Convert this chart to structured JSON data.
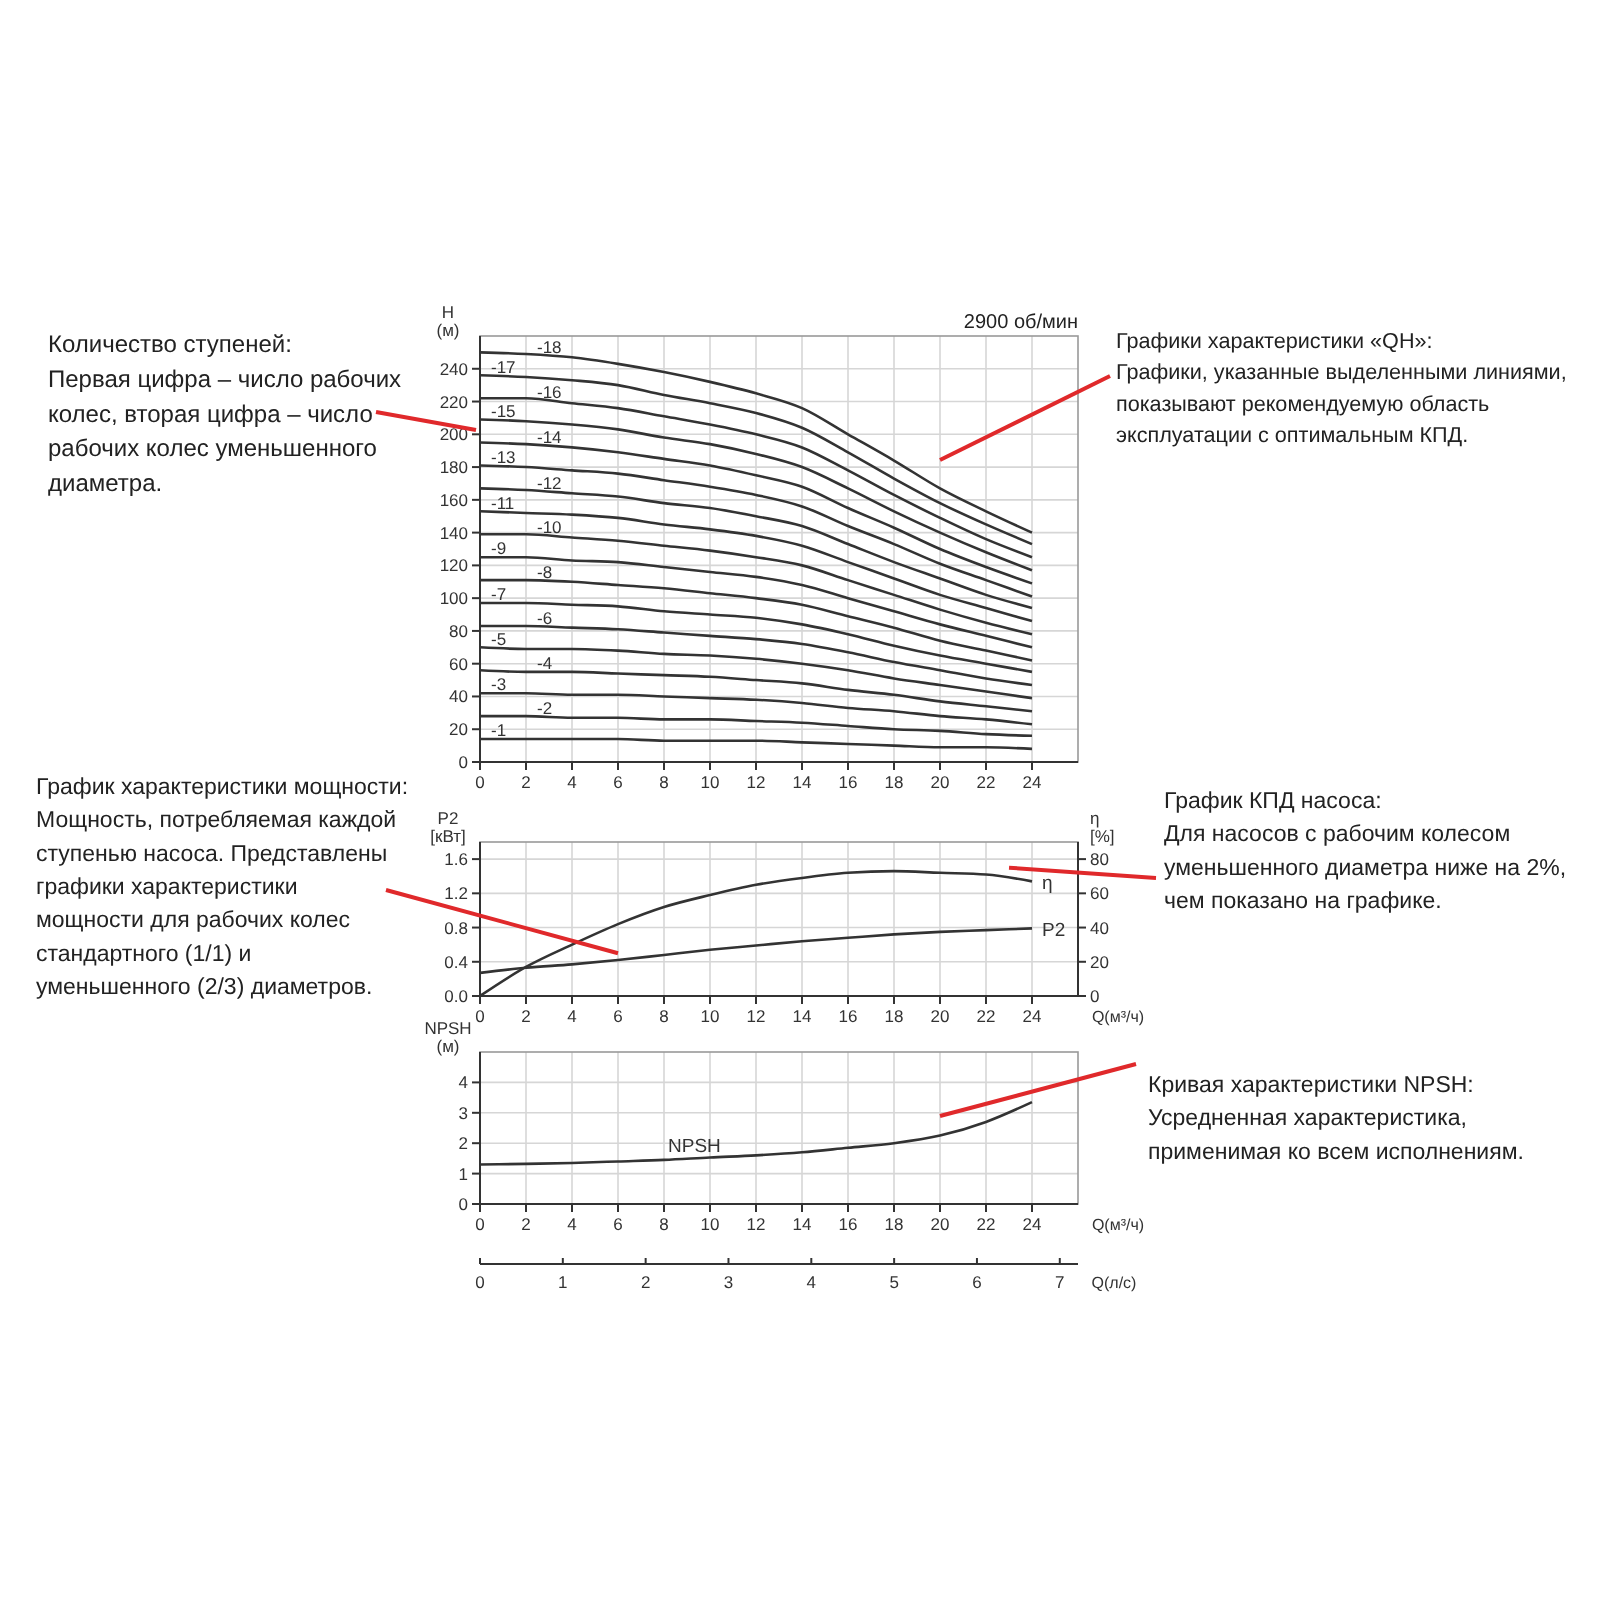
{
  "chart_data": [
    {
      "type": "line",
      "ylabel": "H (м)",
      "xlim": [
        0,
        26
      ],
      "xticks": [
        0,
        2,
        4,
        6,
        8,
        10,
        12,
        14,
        16,
        18,
        20,
        22,
        24
      ],
      "ylim": [
        0,
        260
      ],
      "yticks": [
        0,
        20,
        40,
        60,
        80,
        100,
        120,
        140,
        160,
        180,
        200,
        220,
        240
      ],
      "grid": true,
      "marker": "none",
      "line_style": "solid",
      "x": [
        0,
        2,
        4,
        6,
        8,
        10,
        12,
        14,
        16,
        18,
        20,
        22,
        24
      ],
      "annotations": [
        "2900 об/мин",
        "Количество ступеней:\nПервая цифра – число рабочих\nколес, вторая цифра – число\nрабочих колес уменьшенного\nдиаметра.",
        "Графики характеристики «QH»:\nГрафики, указанные выделенными линиями,\nпоказывают рекомендуемую область\nэксплуатации с оптимальным КПД."
      ],
      "series": [
        {
          "name": "-1",
          "color": "#333333",
          "values": [
            14,
            14,
            14,
            14,
            13,
            13,
            13,
            12,
            11,
            10,
            9,
            9,
            8
          ]
        },
        {
          "name": "-2",
          "color": "#333333",
          "values": [
            28,
            28,
            27,
            27,
            26,
            26,
            25,
            24,
            22,
            20,
            19,
            17,
            16
          ]
        },
        {
          "name": "-3",
          "color": "#333333",
          "values": [
            42,
            42,
            41,
            41,
            40,
            39,
            38,
            36,
            33,
            31,
            28,
            26,
            23
          ]
        },
        {
          "name": "-4",
          "color": "#333333",
          "values": [
            56,
            55,
            55,
            54,
            53,
            52,
            50,
            48,
            44,
            41,
            37,
            34,
            31
          ]
        },
        {
          "name": "-5",
          "color": "#333333",
          "values": [
            70,
            69,
            69,
            68,
            66,
            65,
            63,
            60,
            56,
            51,
            47,
            43,
            39
          ]
        },
        {
          "name": "-6",
          "color": "#333333",
          "values": [
            83,
            83,
            82,
            81,
            79,
            77,
            75,
            72,
            67,
            61,
            56,
            51,
            47
          ]
        },
        {
          "name": "-7",
          "color": "#333333",
          "values": [
            97,
            97,
            96,
            95,
            92,
            90,
            88,
            84,
            78,
            71,
            65,
            60,
            55
          ]
        },
        {
          "name": "-8",
          "color": "#333333",
          "values": [
            111,
            111,
            110,
            108,
            106,
            103,
            100,
            96,
            89,
            82,
            74,
            68,
            62
          ]
        },
        {
          "name": "-9",
          "color": "#333333",
          "values": [
            125,
            125,
            123,
            122,
            119,
            116,
            113,
            108,
            100,
            92,
            84,
            77,
            70
          ]
        },
        {
          "name": "-10",
          "color": "#333333",
          "values": [
            139,
            139,
            137,
            135,
            132,
            129,
            125,
            120,
            111,
            102,
            93,
            85,
            78
          ]
        },
        {
          "name": "-11",
          "color": "#333333",
          "values": [
            153,
            152,
            151,
            149,
            145,
            142,
            138,
            132,
            122,
            112,
            102,
            94,
            86
          ]
        },
        {
          "name": "-12",
          "color": "#333333",
          "values": [
            167,
            166,
            164,
            162,
            158,
            155,
            150,
            144,
            133,
            122,
            112,
            102,
            94
          ]
        },
        {
          "name": "-13",
          "color": "#333333",
          "values": [
            181,
            180,
            178,
            176,
            172,
            168,
            163,
            156,
            144,
            133,
            121,
            111,
            101
          ]
        },
        {
          "name": "-14",
          "color": "#333333",
          "values": [
            195,
            194,
            192,
            189,
            185,
            181,
            175,
            168,
            155,
            143,
            130,
            119,
            109
          ]
        },
        {
          "name": "-15",
          "color": "#333333",
          "values": [
            209,
            208,
            206,
            203,
            198,
            194,
            188,
            180,
            167,
            153,
            140,
            128,
            117
          ]
        },
        {
          "name": "-16",
          "color": "#333333",
          "values": [
            222,
            222,
            219,
            216,
            211,
            206,
            200,
            192,
            178,
            163,
            149,
            136,
            125
          ]
        },
        {
          "name": "-17",
          "color": "#333333",
          "values": [
            236,
            235,
            233,
            230,
            224,
            219,
            213,
            204,
            189,
            173,
            158,
            145,
            133
          ]
        },
        {
          "name": "-18",
          "color": "#333333",
          "values": [
            250,
            249,
            247,
            243,
            238,
            232,
            225,
            216,
            200,
            184,
            167,
            153,
            140
          ]
        }
      ]
    },
    {
      "type": "line",
      "xlabel": "Q(м³/ч)",
      "ylabel": "P2 [кВт]",
      "y2label": "η [%]",
      "xlim": [
        0,
        26
      ],
      "xticks": [
        0,
        2,
        4,
        6,
        8,
        10,
        12,
        14,
        16,
        18,
        20,
        22,
        24
      ],
      "ylim": [
        0,
        1.8
      ],
      "yticks": [
        {
          "value": 0,
          "label": "0.0"
        },
        0.4,
        0.8,
        1.2,
        1.6
      ],
      "y2lim": [
        0,
        90
      ],
      "y2ticks": [
        0,
        20,
        40,
        60,
        80
      ],
      "grid": true,
      "marker": "none",
      "line_style": "solid",
      "x": [
        0,
        2,
        4,
        6,
        8,
        10,
        12,
        14,
        16,
        18,
        20,
        22,
        24
      ],
      "annotations": [
        {
          "text": "График характеристики мощности:\nМощность, потребляемая каждой\nступенью насоса. Представлены\nграфики характеристики\nмощности для рабочих колес\nстандартного (1/1) и\nуменьшенного (2/3) диаметров.",
          "x": 6,
          "y": 0.5
        },
        {
          "text": "График КПД насоса:\nДля насосов с рабочим колесом\nуменьшенного диаметра ниже на 2%,\nчем показано на графике.",
          "x": 23,
          "y": 1.5
        }
      ],
      "series": [
        {
          "name": "P2",
          "color": "#333333",
          "values": [
            0.27,
            0.33,
            0.37,
            0.42,
            0.48,
            0.54,
            0.59,
            0.64,
            0.68,
            0.72,
            0.75,
            0.77,
            0.79
          ]
        },
        {
          "name": "η",
          "color": "#333333",
          "axis": "y2",
          "values": [
            0,
            17,
            30,
            42,
            52,
            59,
            65,
            69,
            72,
            73,
            72,
            71,
            67
          ]
        }
      ]
    },
    {
      "type": "line",
      "xlabel": "Q(м³/ч)",
      "ylabel": "NPSH (м)",
      "x2label": "Q(л/с)",
      "xlim": [
        0,
        26
      ],
      "xticks": [
        0,
        2,
        4,
        6,
        8,
        10,
        12,
        14,
        16,
        18,
        20,
        22,
        24
      ],
      "x2lim": [
        0,
        7.22
      ],
      "x2ticks": [
        0,
        1,
        2,
        3,
        4,
        5,
        6,
        7
      ],
      "ylim": [
        0,
        5
      ],
      "yticks": [
        0,
        1,
        2,
        3,
        4
      ],
      "grid": true,
      "marker": "none",
      "line_style": "solid",
      "x": [
        0,
        2,
        4,
        6,
        8,
        10,
        12,
        14,
        16,
        18,
        20,
        22,
        24
      ],
      "annotations": [
        "Кривая характеристики NPSH:\nУсредненная характеристика,\nприменимая ко всем исполнениям."
      ],
      "series": [
        {
          "name": "NPSH",
          "color": "#333333",
          "values": [
            1.3,
            1.32,
            1.35,
            1.4,
            1.45,
            1.53,
            1.6,
            1.7,
            1.85,
            2.0,
            2.25,
            2.7,
            3.35
          ]
        }
      ]
    }
  ]
}
